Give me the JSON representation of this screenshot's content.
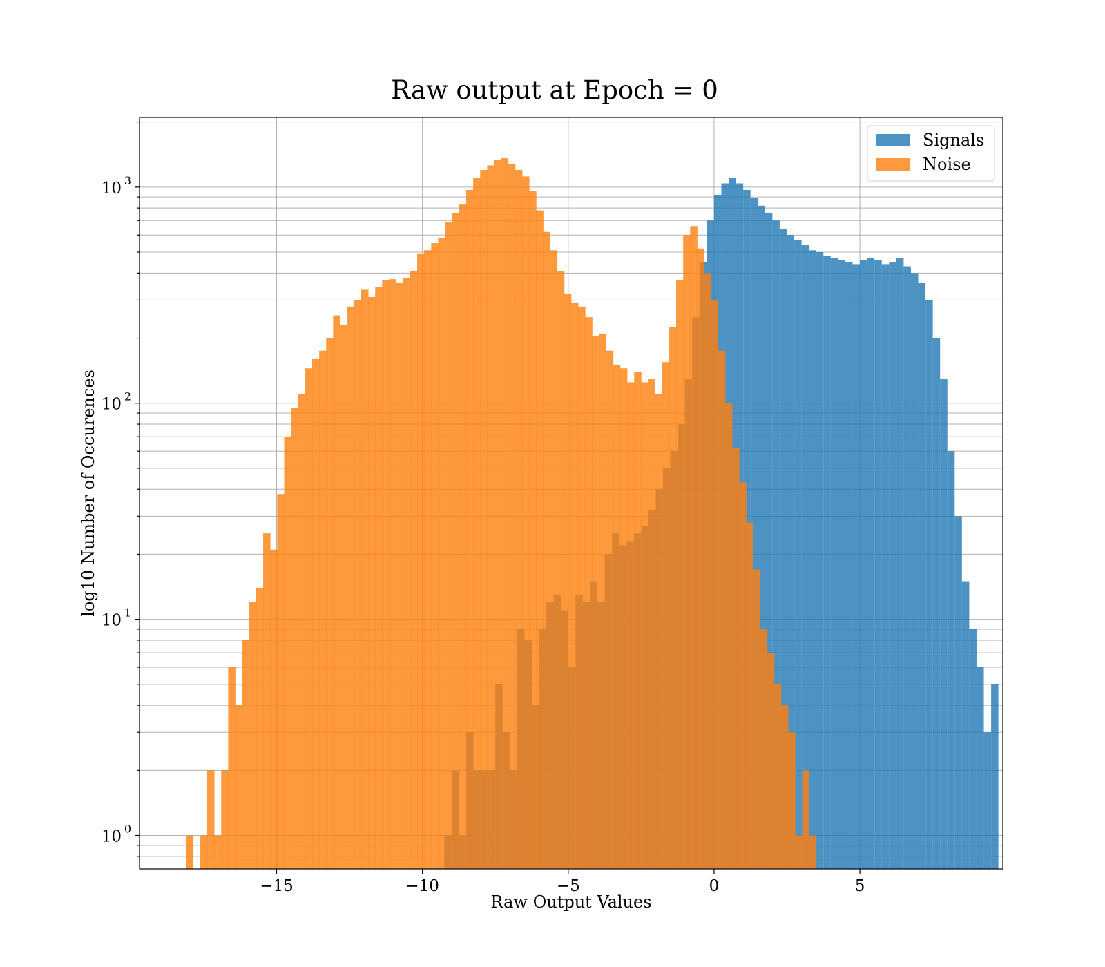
{
  "chart_data": {
    "type": "bar",
    "subtype": "histogram",
    "title": "Raw output at Epoch = 0",
    "xlabel": "Raw Output Values",
    "ylabel": "log10 Number of Occurences",
    "xlim": [
      -19.7,
      9.9
    ],
    "ylim": [
      0.7,
      2100
    ],
    "yscale": "log",
    "grid": {
      "major": true,
      "minor_y": true,
      "color": "#b0b0b0"
    },
    "legend": {
      "placement": "top-right"
    },
    "bin_width": 0.24,
    "xticks": [
      {
        "value": -15,
        "label": "−15"
      },
      {
        "value": -10,
        "label": "−10"
      },
      {
        "value": -5,
        "label": "−5"
      },
      {
        "value": 0,
        "label": "0"
      },
      {
        "value": 5,
        "label": "5"
      }
    ],
    "yticks": [
      {
        "value": 1,
        "base": "10",
        "exp": "0"
      },
      {
        "value": 10,
        "base": "10",
        "exp": "1"
      },
      {
        "value": 100,
        "base": "10",
        "exp": "2"
      },
      {
        "value": 1000,
        "base": "10",
        "exp": "3"
      }
    ],
    "series": [
      {
        "name": "Signals",
        "color": "#1f77b4",
        "opacity": 0.8,
        "bins": [
          [
            -9.25,
            1
          ],
          [
            -9.0,
            2
          ],
          [
            -8.75,
            1
          ],
          [
            -8.5,
            3
          ],
          [
            -8.25,
            2
          ],
          [
            -8.0,
            2
          ],
          [
            -7.75,
            2
          ],
          [
            -7.5,
            5
          ],
          [
            -7.25,
            3
          ],
          [
            -7.0,
            2
          ],
          [
            -6.75,
            9
          ],
          [
            -6.5,
            8
          ],
          [
            -6.25,
            4
          ],
          [
            -6.0,
            9
          ],
          [
            -5.75,
            12
          ],
          [
            -5.5,
            13
          ],
          [
            -5.25,
            11
          ],
          [
            -5.0,
            6
          ],
          [
            -4.75,
            13
          ],
          [
            -4.5,
            12
          ],
          [
            -4.25,
            15
          ],
          [
            -4.0,
            12
          ],
          [
            -3.75,
            20
          ],
          [
            -3.5,
            25
          ],
          [
            -3.25,
            22
          ],
          [
            -3.0,
            23
          ],
          [
            -2.75,
            25
          ],
          [
            -2.5,
            27
          ],
          [
            -2.25,
            32
          ],
          [
            -2.0,
            40
          ],
          [
            -1.75,
            50
          ],
          [
            -1.5,
            60
          ],
          [
            -1.25,
            80
          ],
          [
            -1.0,
            130
          ],
          [
            -0.75,
            250
          ],
          [
            -0.5,
            450
          ],
          [
            -0.25,
            700
          ],
          [
            0.0,
            920
          ],
          [
            0.25,
            1040
          ],
          [
            0.5,
            1100
          ],
          [
            0.75,
            1040
          ],
          [
            1.0,
            970
          ],
          [
            1.25,
            890
          ],
          [
            1.5,
            820
          ],
          [
            1.75,
            760
          ],
          [
            2.0,
            700
          ],
          [
            2.25,
            640
          ],
          [
            2.5,
            600
          ],
          [
            2.75,
            570
          ],
          [
            3.0,
            540
          ],
          [
            3.25,
            510
          ],
          [
            3.5,
            500
          ],
          [
            3.75,
            480
          ],
          [
            4.0,
            470
          ],
          [
            4.25,
            460
          ],
          [
            4.5,
            450
          ],
          [
            4.75,
            440
          ],
          [
            5.0,
            460
          ],
          [
            5.25,
            470
          ],
          [
            5.5,
            460
          ],
          [
            5.75,
            440
          ],
          [
            6.0,
            450
          ],
          [
            6.25,
            470
          ],
          [
            6.5,
            430
          ],
          [
            6.75,
            400
          ],
          [
            7.0,
            360
          ],
          [
            7.25,
            300
          ],
          [
            7.5,
            200
          ],
          [
            7.75,
            130
          ],
          [
            8.0,
            60
          ],
          [
            8.25,
            30
          ],
          [
            8.5,
            15
          ],
          [
            8.75,
            9
          ],
          [
            9.0,
            6
          ],
          [
            9.25,
            3
          ],
          [
            9.5,
            5
          ]
        ]
      },
      {
        "name": "Noise",
        "color": "#ff7f0e",
        "opacity": 0.8,
        "bins": [
          [
            -18.1,
            1
          ],
          [
            -17.86,
            0
          ],
          [
            -17.62,
            1
          ],
          [
            -17.38,
            2
          ],
          [
            -17.14,
            1
          ],
          [
            -16.9,
            2
          ],
          [
            -16.66,
            6
          ],
          [
            -16.42,
            4
          ],
          [
            -16.18,
            8
          ],
          [
            -15.94,
            12
          ],
          [
            -15.7,
            14
          ],
          [
            -15.46,
            25
          ],
          [
            -15.22,
            21
          ],
          [
            -14.98,
            38
          ],
          [
            -14.74,
            70
          ],
          [
            -14.5,
            95
          ],
          [
            -14.26,
            110
          ],
          [
            -14.02,
            145
          ],
          [
            -13.78,
            160
          ],
          [
            -13.54,
            175
          ],
          [
            -13.3,
            200
          ],
          [
            -13.06,
            255
          ],
          [
            -12.82,
            230
          ],
          [
            -12.58,
            280
          ],
          [
            -12.34,
            300
          ],
          [
            -12.1,
            335
          ],
          [
            -11.86,
            310
          ],
          [
            -11.62,
            345
          ],
          [
            -11.38,
            370
          ],
          [
            -11.14,
            375
          ],
          [
            -10.9,
            360
          ],
          [
            -10.66,
            380
          ],
          [
            -10.42,
            410
          ],
          [
            -10.18,
            490
          ],
          [
            -9.94,
            510
          ],
          [
            -9.7,
            550
          ],
          [
            -9.46,
            580
          ],
          [
            -9.22,
            690
          ],
          [
            -8.98,
            760
          ],
          [
            -8.74,
            830
          ],
          [
            -8.5,
            970
          ],
          [
            -8.26,
            1100
          ],
          [
            -8.02,
            1200
          ],
          [
            -7.78,
            1260
          ],
          [
            -7.54,
            1340
          ],
          [
            -7.3,
            1360
          ],
          [
            -7.06,
            1280
          ],
          [
            -6.82,
            1200
          ],
          [
            -6.58,
            1120
          ],
          [
            -6.34,
            960
          ],
          [
            -6.1,
            780
          ],
          [
            -5.86,
            620
          ],
          [
            -5.62,
            510
          ],
          [
            -5.38,
            410
          ],
          [
            -5.14,
            320
          ],
          [
            -4.9,
            290
          ],
          [
            -4.66,
            280
          ],
          [
            -4.42,
            250
          ],
          [
            -4.18,
            205
          ],
          [
            -3.94,
            210
          ],
          [
            -3.7,
            175
          ],
          [
            -3.46,
            150
          ],
          [
            -3.22,
            145
          ],
          [
            -2.98,
            125
          ],
          [
            -2.74,
            140
          ],
          [
            -2.5,
            125
          ],
          [
            -2.26,
            130
          ],
          [
            -2.02,
            110
          ],
          [
            -1.78,
            155
          ],
          [
            -1.54,
            225
          ],
          [
            -1.3,
            370
          ],
          [
            -1.06,
            600
          ],
          [
            -0.82,
            660
          ],
          [
            -0.58,
            520
          ],
          [
            -0.34,
            400
          ],
          [
            -0.1,
            300
          ],
          [
            0.14,
            175
          ],
          [
            0.38,
            100
          ],
          [
            0.62,
            62
          ],
          [
            0.86,
            43
          ],
          [
            1.1,
            28
          ],
          [
            1.34,
            17
          ],
          [
            1.58,
            9
          ],
          [
            1.82,
            7
          ],
          [
            2.06,
            5
          ],
          [
            2.3,
            4
          ],
          [
            2.54,
            3
          ],
          [
            2.78,
            1
          ],
          [
            3.02,
            2
          ],
          [
            3.26,
            1
          ]
        ]
      }
    ]
  }
}
